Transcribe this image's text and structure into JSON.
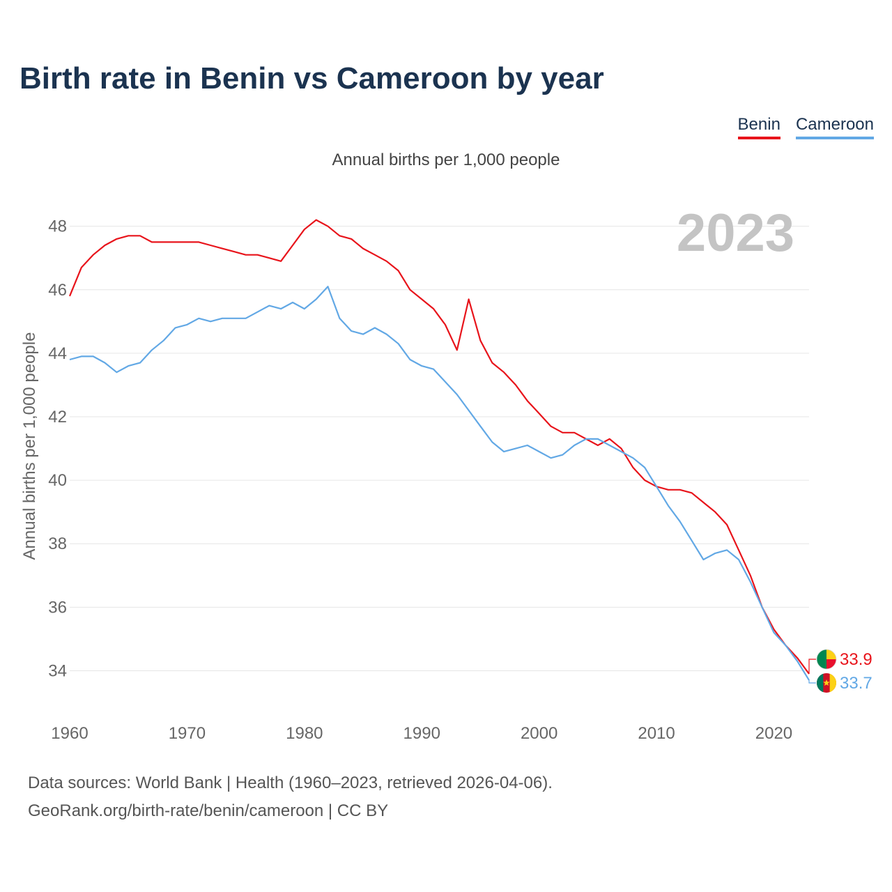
{
  "chart_data": {
    "type": "line",
    "title": "Birth rate in Benin vs Cameroon by year",
    "subtitle": "Annual births per 1,000 people",
    "ylabel": "Annual births per 1,000 people",
    "xlabel": "",
    "year_label": "2023",
    "xlim": [
      1960,
      2023
    ],
    "ylim": [
      33.0,
      49.2
    ],
    "xticks": [
      1960,
      1970,
      1980,
      1990,
      2000,
      2010,
      2020
    ],
    "yticks": [
      34,
      36,
      38,
      40,
      42,
      44,
      46,
      48
    ],
    "grid": true,
    "legend_position": "top-right",
    "x": [
      1960,
      1961,
      1962,
      1963,
      1964,
      1965,
      1966,
      1967,
      1968,
      1969,
      1970,
      1971,
      1972,
      1973,
      1974,
      1975,
      1976,
      1977,
      1978,
      1979,
      1980,
      1981,
      1982,
      1983,
      1984,
      1985,
      1986,
      1987,
      1988,
      1989,
      1990,
      1991,
      1992,
      1993,
      1994,
      1995,
      1996,
      1997,
      1998,
      1999,
      2000,
      2001,
      2002,
      2003,
      2004,
      2005,
      2006,
      2007,
      2008,
      2009,
      2010,
      2011,
      2012,
      2013,
      2014,
      2015,
      2016,
      2017,
      2018,
      2019,
      2020,
      2021,
      2022,
      2023
    ],
    "series": [
      {
        "name": "Benin",
        "color": "#e8141b",
        "end_label": "33.9",
        "values": [
          45.8,
          46.7,
          47.1,
          47.4,
          47.6,
          47.7,
          47.7,
          47.5,
          47.5,
          47.5,
          47.5,
          47.5,
          47.4,
          47.3,
          47.2,
          47.1,
          47.1,
          47.0,
          46.9,
          47.4,
          47.9,
          48.2,
          48.0,
          47.7,
          47.6,
          47.3,
          47.1,
          46.9,
          46.6,
          46.0,
          45.7,
          45.4,
          44.9,
          44.1,
          45.7,
          44.4,
          43.7,
          43.4,
          43.0,
          42.5,
          42.1,
          41.7,
          41.5,
          41.5,
          41.3,
          41.1,
          41.3,
          41.0,
          40.4,
          40.0,
          39.8,
          39.7,
          39.7,
          39.6,
          39.3,
          39.0,
          38.6,
          37.8,
          37.0,
          36.0,
          35.3,
          34.8,
          34.4,
          33.9
        ]
      },
      {
        "name": "Cameroon",
        "color": "#62a8e5",
        "end_label": "33.7",
        "values": [
          43.8,
          43.9,
          43.9,
          43.7,
          43.4,
          43.6,
          43.7,
          44.1,
          44.4,
          44.8,
          44.9,
          45.1,
          45.0,
          45.1,
          45.1,
          45.1,
          45.3,
          45.5,
          45.4,
          45.6,
          45.4,
          45.7,
          46.1,
          45.1,
          44.7,
          44.6,
          44.8,
          44.6,
          44.3,
          43.8,
          43.6,
          43.5,
          43.1,
          42.7,
          42.2,
          41.7,
          41.2,
          40.9,
          41.0,
          41.1,
          40.9,
          40.7,
          40.8,
          41.1,
          41.3,
          41.3,
          41.1,
          40.9,
          40.7,
          40.4,
          39.8,
          39.2,
          38.7,
          38.1,
          37.5,
          37.7,
          37.8,
          37.5,
          36.8,
          36.0,
          35.2,
          34.8,
          34.3,
          33.7
        ]
      }
    ]
  },
  "legend": {
    "items": [
      "Benin",
      "Cameroon"
    ]
  },
  "footer": {
    "line1": "Data sources: World Bank | Health (1960–2023, retrieved 2026-04-06).",
    "line2": "GeoRank.org/birth-rate/benin/cameroon | CC BY"
  },
  "colors": {
    "title": "#1b3350",
    "grid": "#e6e6e6",
    "axis_text": "#666666",
    "year_watermark": "#c4c4c4"
  }
}
